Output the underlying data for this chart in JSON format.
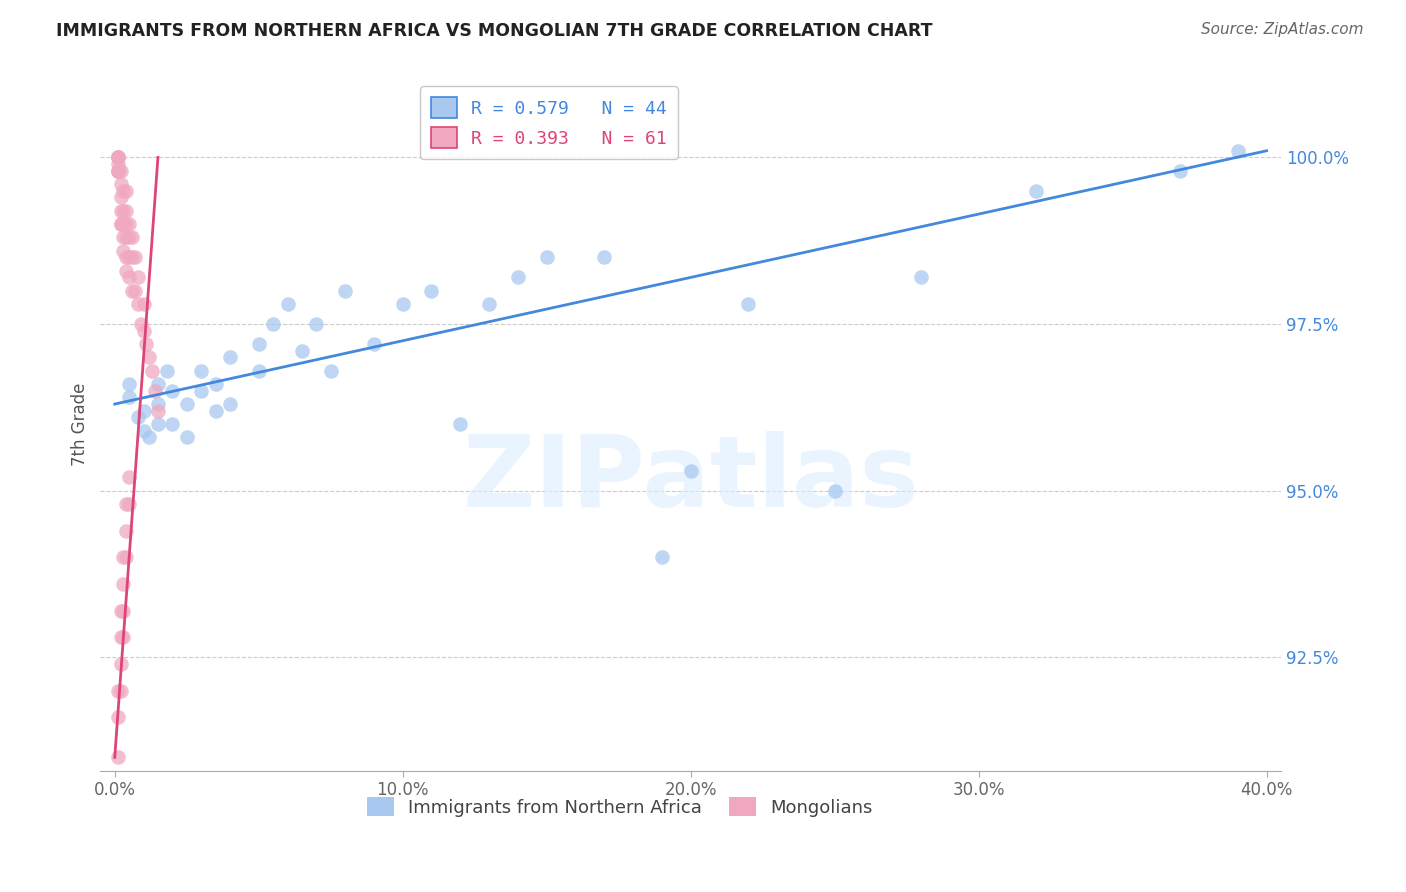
{
  "title": "IMMIGRANTS FROM NORTHERN AFRICA VS MONGOLIAN 7TH GRADE CORRELATION CHART",
  "source": "Source: ZipAtlas.com",
  "ylabel_label": "7th Grade",
  "x_tick_labels": [
    "0.0%",
    "10.0%",
    "20.0%",
    "30.0%",
    "40.0%"
  ],
  "x_tick_positions": [
    0.0,
    0.1,
    0.2,
    0.3,
    0.4
  ],
  "y_tick_labels": [
    "92.5%",
    "95.0%",
    "97.5%",
    "100.0%"
  ],
  "y_tick_positions": [
    0.925,
    0.95,
    0.975,
    1.0
  ],
  "xlim": [
    -0.005,
    0.405
  ],
  "ylim": [
    0.908,
    1.012
  ],
  "blue_color": "#a8c8f0",
  "pink_color": "#f0a8c0",
  "blue_line_color": "#4488dd",
  "pink_line_color": "#dd4477",
  "watermark_text": "ZIPatlas",
  "legend_label_blue": "Immigrants from Northern Africa",
  "legend_label_pink": "Mongolians",
  "blue_points_x": [
    0.005,
    0.005,
    0.008,
    0.01,
    0.01,
    0.012,
    0.015,
    0.015,
    0.015,
    0.018,
    0.02,
    0.02,
    0.025,
    0.025,
    0.03,
    0.03,
    0.035,
    0.035,
    0.04,
    0.04,
    0.05,
    0.05,
    0.055,
    0.06,
    0.065,
    0.07,
    0.075,
    0.08,
    0.09,
    0.1,
    0.11,
    0.12,
    0.13,
    0.14,
    0.15,
    0.17,
    0.19,
    0.2,
    0.22,
    0.25,
    0.28,
    0.32,
    0.37,
    0.39
  ],
  "blue_points_y": [
    0.966,
    0.964,
    0.961,
    0.959,
    0.962,
    0.958,
    0.96,
    0.963,
    0.966,
    0.968,
    0.965,
    0.96,
    0.958,
    0.963,
    0.965,
    0.968,
    0.962,
    0.966,
    0.963,
    0.97,
    0.972,
    0.968,
    0.975,
    0.978,
    0.971,
    0.975,
    0.968,
    0.98,
    0.972,
    0.978,
    0.98,
    0.96,
    0.978,
    0.982,
    0.985,
    0.985,
    0.94,
    0.953,
    0.978,
    0.95,
    0.982,
    0.995,
    0.998,
    1.001
  ],
  "pink_points_x": [
    0.001,
    0.001,
    0.001,
    0.001,
    0.001,
    0.001,
    0.001,
    0.001,
    0.001,
    0.002,
    0.002,
    0.002,
    0.002,
    0.002,
    0.002,
    0.003,
    0.003,
    0.003,
    0.003,
    0.003,
    0.004,
    0.004,
    0.004,
    0.004,
    0.004,
    0.004,
    0.005,
    0.005,
    0.005,
    0.005,
    0.006,
    0.006,
    0.006,
    0.007,
    0.007,
    0.008,
    0.008,
    0.009,
    0.01,
    0.01,
    0.011,
    0.012,
    0.013,
    0.014,
    0.015,
    0.001,
    0.001,
    0.002,
    0.002,
    0.003,
    0.003,
    0.004,
    0.004,
    0.005,
    0.005,
    0.001,
    0.002,
    0.002,
    0.003,
    0.003,
    0.004
  ],
  "pink_points_y": [
    1.0,
    1.0,
    1.0,
    1.0,
    0.999,
    0.998,
    0.998,
    0.998,
    0.998,
    0.998,
    0.996,
    0.994,
    0.992,
    0.99,
    0.99,
    0.995,
    0.992,
    0.99,
    0.988,
    0.986,
    0.995,
    0.992,
    0.99,
    0.988,
    0.985,
    0.983,
    0.99,
    0.988,
    0.985,
    0.982,
    0.988,
    0.985,
    0.98,
    0.985,
    0.98,
    0.982,
    0.978,
    0.975,
    0.978,
    0.974,
    0.972,
    0.97,
    0.968,
    0.965,
    0.962,
    0.92,
    0.916,
    0.932,
    0.928,
    0.94,
    0.936,
    0.948,
    0.944,
    0.952,
    0.948,
    0.91,
    0.924,
    0.92,
    0.932,
    0.928,
    0.94
  ]
}
